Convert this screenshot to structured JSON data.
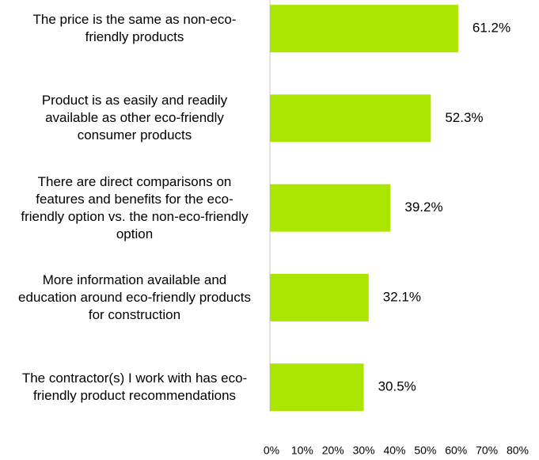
{
  "chart_data": {
    "type": "bar",
    "orientation": "horizontal",
    "categories": [
      "The price is the same as non-eco-friendly products",
      "Product is as easily and readily available as other eco-friendly consumer products",
      "There are direct comparisons on features and benefits for the eco-friendly option vs. the non-eco-friendly option",
      "More information available and education around eco-friendly products for construction",
      "The contractor(s) I work with has eco-friendly product recommendations"
    ],
    "values": [
      61.2,
      52.3,
      39.2,
      32.1,
      30.5
    ],
    "value_labels": [
      "61.2%",
      "52.3%",
      "39.2%",
      "32.1%",
      "30.5%"
    ],
    "color": "#aae600",
    "xlim": [
      0,
      80
    ],
    "xticks": [
      {
        "value": 0,
        "label": "0%"
      },
      {
        "value": 10,
        "label": "10%"
      },
      {
        "value": 20,
        "label": "20%"
      },
      {
        "value": 30,
        "label": "30%"
      },
      {
        "value": 40,
        "label": "40%"
      },
      {
        "value": 50,
        "label": "50%"
      },
      {
        "value": 60,
        "label": "60%"
      },
      {
        "value": 70,
        "label": "70%"
      },
      {
        "value": 80,
        "label": "80%"
      }
    ],
    "grid": false
  }
}
